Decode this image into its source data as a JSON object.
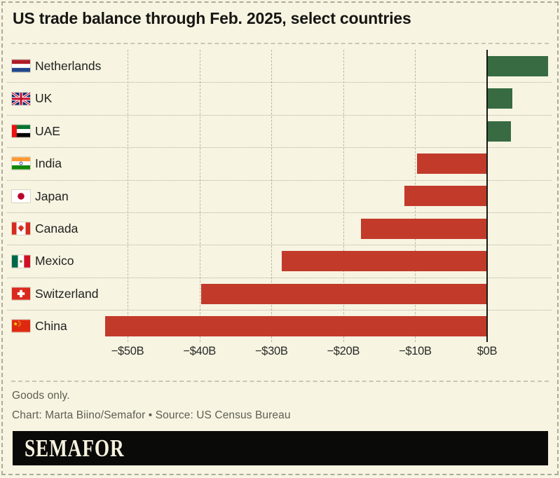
{
  "chart_data": {
    "type": "bar",
    "orientation": "horizontal",
    "title": "US trade balance through Feb. 2025, select countries",
    "unit": "USD billions",
    "categories": [
      "Netherlands",
      "UK",
      "UAE",
      "India",
      "Japan",
      "Canada",
      "Mexico",
      "Switzerland",
      "China"
    ],
    "values": [
      8.5,
      3.5,
      3.3,
      -9.7,
      -11.5,
      -17.5,
      -28.6,
      -39.8,
      -53.1
    ],
    "flags": [
      "netherlands",
      "uk",
      "uae",
      "india",
      "japan",
      "canada",
      "mexico",
      "switzerland",
      "china"
    ],
    "bar_colors": {
      "positive": "#386b42",
      "negative": "#c23b2a"
    },
    "x_axis": {
      "tick_labels": [
        "−$50B",
        "−$40B",
        "−$30B",
        "−$20B",
        "−$10B",
        "$0B"
      ],
      "tick_values": [
        -50,
        -40,
        -30,
        -20,
        -10,
        0
      ],
      "range": [
        -54,
        8.6
      ],
      "gridlines": "dashed-vertical"
    },
    "row_separators": "dotted-horizontal",
    "zero_line_color": "#191917",
    "legend": "none"
  },
  "footer": {
    "note": "Goods only.",
    "credit": "Chart: Marta Biino/Semafor • Source: US Census Bureau"
  },
  "logo": {
    "text": "SEMAFOR"
  },
  "colors": {
    "background": "#f7f4e2",
    "positive_bar": "#386b42",
    "negative_bar": "#c23b2a"
  }
}
